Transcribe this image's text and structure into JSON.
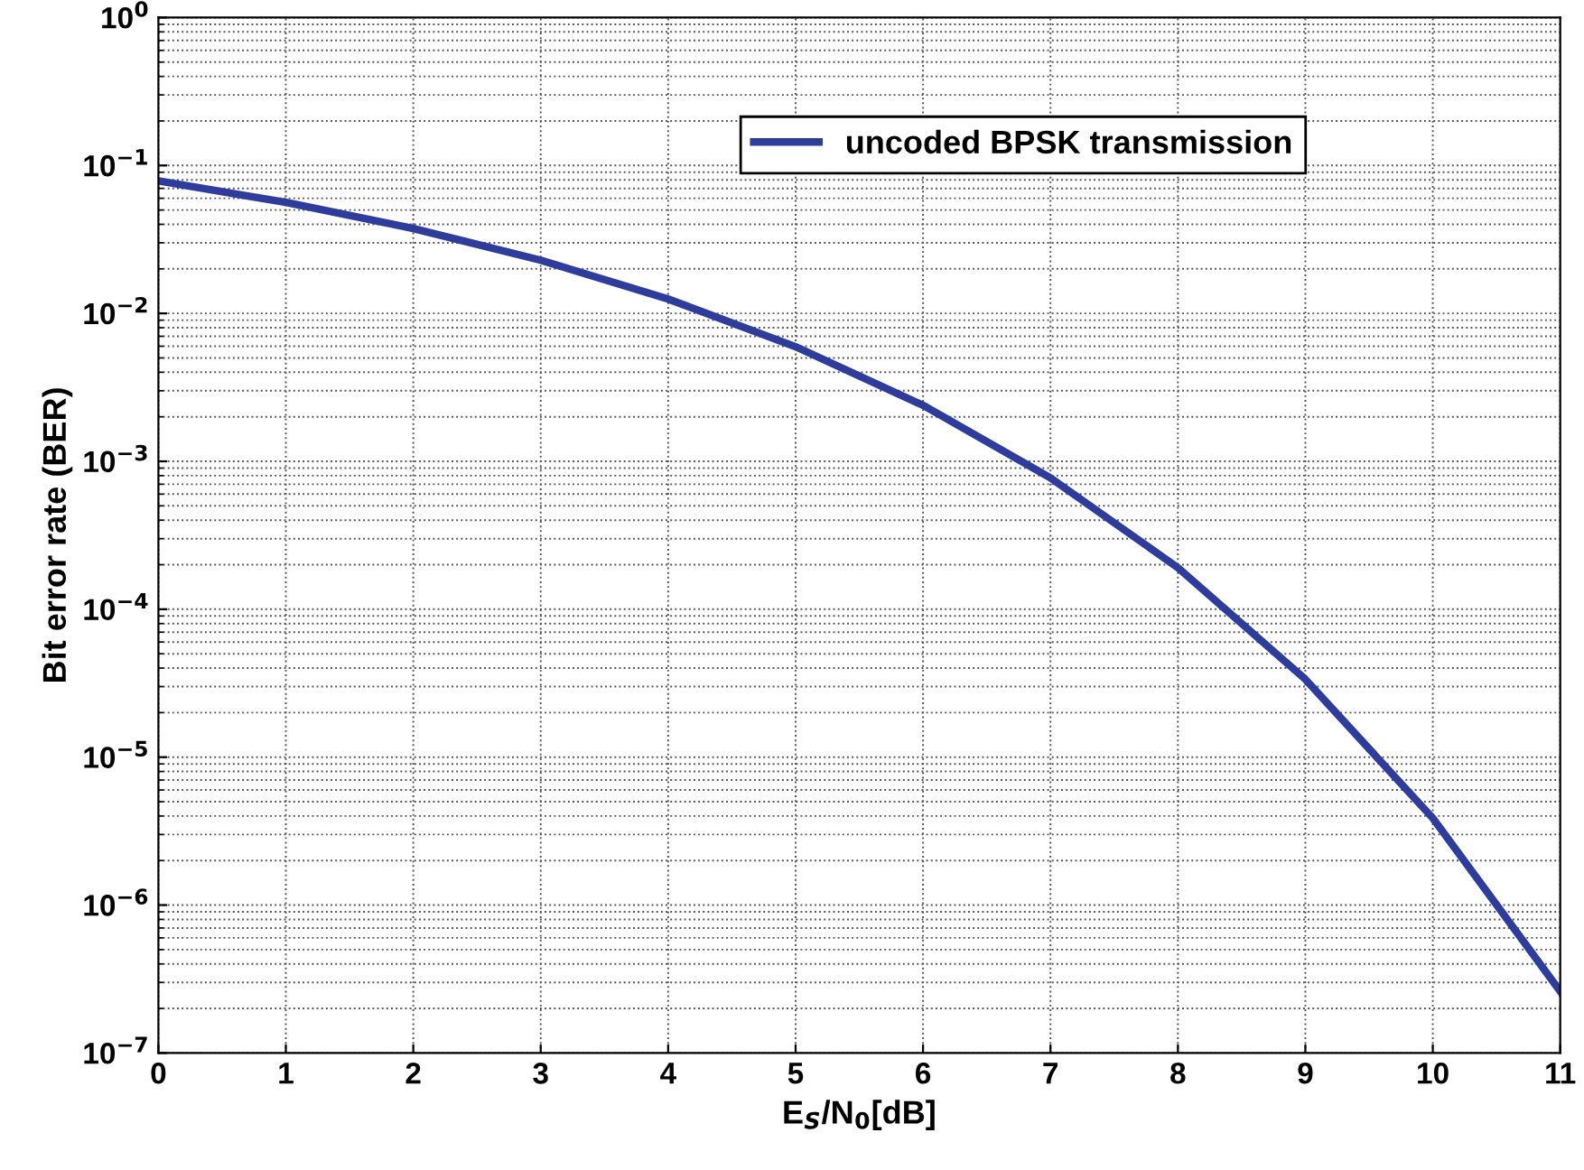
{
  "chart_data": {
    "type": "line",
    "xlabel": "E$_{S}$/N$_{0}$[dB]",
    "ylabel": "Bit error rate (BER)",
    "x": [
      0,
      1,
      2,
      3,
      4,
      5,
      6,
      7,
      8,
      9,
      10,
      11
    ],
    "series": [
      {
        "name": "uncoded BPSK transmission",
        "color": "#2e3d9c",
        "values": [
          0.0786,
          0.0563,
          0.0375,
          0.0229,
          0.0125,
          0.00595,
          0.00239,
          0.000773,
          0.000191,
          3.36e-05,
          3.87e-06,
          2.61e-07
        ]
      }
    ],
    "log": "y",
    "xlim": [
      0,
      11
    ],
    "xticks": [
      0,
      1,
      2,
      3,
      4,
      5,
      6,
      7,
      8,
      9,
      10,
      11
    ],
    "ylim": [
      1e-07,
      1
    ],
    "yticks": [
      {
        "value": 1e-07,
        "label": "10$^{−7}$"
      },
      {
        "value": 1e-06,
        "label": "10$^{−6}$"
      },
      {
        "value": 1e-05,
        "label": "10$^{−5}$"
      },
      {
        "value": 0.0001,
        "label": "10$^{−4}$"
      },
      {
        "value": 0.001,
        "label": "10$^{−3}$"
      },
      {
        "value": 0.01,
        "label": "10$^{−2}$"
      },
      {
        "value": 0.1,
        "label": "10$^{−1}$"
      },
      {
        "value": 1,
        "label": "10$^{0}$"
      }
    ],
    "grid": true,
    "legend": "top right",
    "marker": "none",
    "line_style": "solid"
  }
}
